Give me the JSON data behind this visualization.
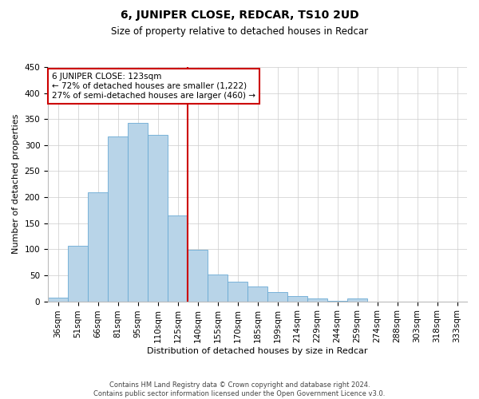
{
  "title": "6, JUNIPER CLOSE, REDCAR, TS10 2UD",
  "subtitle": "Size of property relative to detached houses in Redcar",
  "xlabel": "Distribution of detached houses by size in Redcar",
  "ylabel": "Number of detached properties",
  "bar_labels": [
    "36sqm",
    "51sqm",
    "66sqm",
    "81sqm",
    "95sqm",
    "110sqm",
    "125sqm",
    "140sqm",
    "155sqm",
    "170sqm",
    "185sqm",
    "199sqm",
    "214sqm",
    "229sqm",
    "244sqm",
    "259sqm",
    "274sqm",
    "288sqm",
    "303sqm",
    "318sqm",
    "333sqm"
  ],
  "bar_values": [
    7,
    107,
    210,
    317,
    343,
    320,
    165,
    99,
    51,
    37,
    28,
    18,
    10,
    5,
    1,
    5,
    0,
    0,
    0,
    0,
    0
  ],
  "bar_color": "#b8d4e8",
  "bar_edge_color": "#6aaad4",
  "vline_index": 6,
  "vline_color": "#cc0000",
  "ylim": [
    0,
    450
  ],
  "yticks": [
    0,
    50,
    100,
    150,
    200,
    250,
    300,
    350,
    400,
    450
  ],
  "annotation_title": "6 JUNIPER CLOSE: 123sqm",
  "annotation_line1": "← 72% of detached houses are smaller (1,222)",
  "annotation_line2": "27% of semi-detached houses are larger (460) →",
  "annotation_box_color": "#cc0000",
  "footer_line1": "Contains HM Land Registry data © Crown copyright and database right 2024.",
  "footer_line2": "Contains public sector information licensed under the Open Government Licence v3.0.",
  "background_color": "#ffffff",
  "grid_color": "#cccccc",
  "title_fontsize": 10,
  "subtitle_fontsize": 8.5,
  "axis_label_fontsize": 8,
  "tick_fontsize": 7.5,
  "annotation_fontsize": 7.5,
  "footer_fontsize": 6
}
